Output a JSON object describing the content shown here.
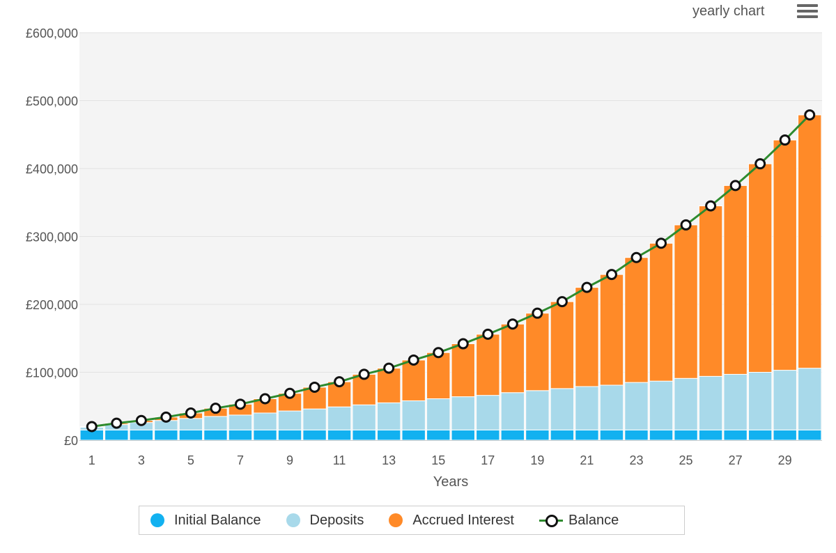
{
  "header": {
    "chart_title": "yearly chart",
    "menu_icon": "hamburger-menu-icon"
  },
  "colors": {
    "initial_balance": "#12b1f0",
    "deposits": "#a8d9ea",
    "accrued_interest": "#ff8a28",
    "balance_line": "#2e8b2e",
    "balance_marker_stroke": "#111111"
  },
  "chart_data": {
    "type": "bar",
    "stacked": true,
    "title": "yearly chart",
    "xlabel": "Years",
    "ylabel": "",
    "ylim": [
      0,
      600000
    ],
    "yticks": [
      0,
      100000,
      200000,
      300000,
      400000,
      500000,
      600000
    ],
    "ytick_labels": [
      "£0",
      "£100,000",
      "£200,000",
      "£300,000",
      "£400,000",
      "£500,000",
      "£600,000"
    ],
    "xtick_labels": [
      "1",
      "3",
      "5",
      "7",
      "9",
      "11",
      "13",
      "15",
      "17",
      "19",
      "21",
      "23",
      "25",
      "27",
      "29"
    ],
    "categories": [
      1,
      2,
      3,
      4,
      5,
      6,
      7,
      8,
      9,
      10,
      11,
      12,
      13,
      14,
      15,
      16,
      17,
      18,
      19,
      20,
      21,
      22,
      23,
      24,
      25,
      26,
      27,
      28,
      29,
      30
    ],
    "grid": true,
    "legend_position": "bottom",
    "series": [
      {
        "name": "Initial Balance",
        "kind": "bar",
        "values": [
          15000,
          15000,
          15000,
          15000,
          15000,
          15000,
          15000,
          15000,
          15000,
          15000,
          15000,
          15000,
          15000,
          15000,
          15000,
          15000,
          15000,
          15000,
          15000,
          15000,
          15000,
          15000,
          15000,
          15000,
          15000,
          15000,
          15000,
          15000,
          15000,
          15000
        ]
      },
      {
        "name": "Deposits",
        "kind": "bar",
        "values": [
          4000,
          8000,
          11000,
          14000,
          17000,
          20000,
          22000,
          25000,
          28000,
          31000,
          34000,
          37000,
          40000,
          43000,
          46000,
          49000,
          51000,
          55000,
          58000,
          61000,
          64000,
          66000,
          70000,
          72000,
          76000,
          79000,
          82000,
          85000,
          88000,
          91000
        ]
      },
      {
        "name": "Accrued Interest",
        "kind": "bar",
        "values": [
          1000,
          2000,
          3000,
          5000,
          8000,
          12000,
          16000,
          21000,
          26000,
          32000,
          37000,
          45000,
          51000,
          60000,
          68000,
          78000,
          90000,
          101000,
          114000,
          128000,
          146000,
          163000,
          184000,
          203000,
          226000,
          251000,
          278000,
          307000,
          339000,
          373000
        ]
      },
      {
        "name": "Balance",
        "kind": "line",
        "values": [
          20000,
          25000,
          29000,
          34000,
          40000,
          47000,
          53000,
          61000,
          69000,
          78000,
          86000,
          97000,
          106000,
          118000,
          129000,
          142000,
          156000,
          171000,
          187000,
          204000,
          225000,
          244000,
          269000,
          290000,
          317000,
          345000,
          375000,
          407000,
          442000,
          479000
        ]
      }
    ]
  }
}
